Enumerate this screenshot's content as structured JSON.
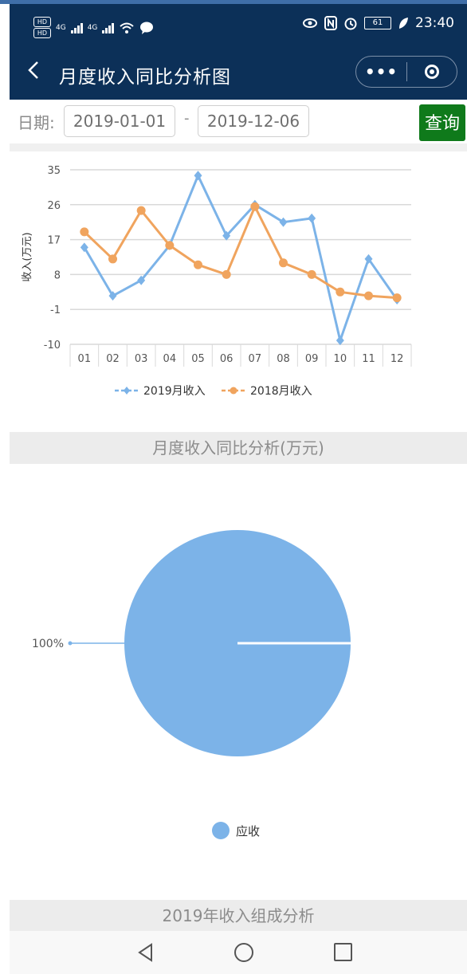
{
  "status_bar": {
    "hd_labels": [
      "HD",
      "HD"
    ],
    "network_labels": [
      "4G",
      "4G"
    ],
    "battery": "61",
    "time": "23:40"
  },
  "nav": {
    "title": "月度收入同比分析图",
    "more_glyph": "•••"
  },
  "filter": {
    "label": "日期:",
    "start_date": "2019-01-01",
    "separator": "-",
    "end_date": "2019-12-06",
    "query_button": "查询"
  },
  "chart_data": [
    {
      "type": "line",
      "ylabel": "收入(万元)",
      "ylim": [
        -10,
        35
      ],
      "yticks": [
        "35",
        "26",
        "17",
        "8",
        "-1",
        "-10"
      ],
      "categories": [
        "01",
        "02",
        "03",
        "04",
        "05",
        "06",
        "07",
        "08",
        "09",
        "10",
        "11",
        "12"
      ],
      "grid": true,
      "legend_position": "bottom",
      "series": [
        {
          "name": "2019月收入",
          "color": "#7cb3e8",
          "marker": "diamond",
          "values": [
            15,
            2.5,
            6.5,
            15.5,
            33.5,
            18,
            26,
            21.5,
            22.5,
            -9,
            12,
            1.5
          ]
        },
        {
          "name": "2018月收入",
          "color": "#f0a45e",
          "marker": "circle",
          "values": [
            19,
            12,
            24.5,
            15.5,
            10.5,
            8,
            25.5,
            11,
            8,
            3.5,
            2.5,
            2
          ]
        }
      ]
    },
    {
      "type": "pie",
      "slices": [
        {
          "name": "应收",
          "value": 100,
          "label": "100%",
          "color": "#7cb3e8"
        }
      ],
      "legend_position": "bottom"
    }
  ],
  "sections": {
    "monthly_title": "月度收入同比分析(万元)",
    "composition_title": "2019年收入组成分析"
  }
}
